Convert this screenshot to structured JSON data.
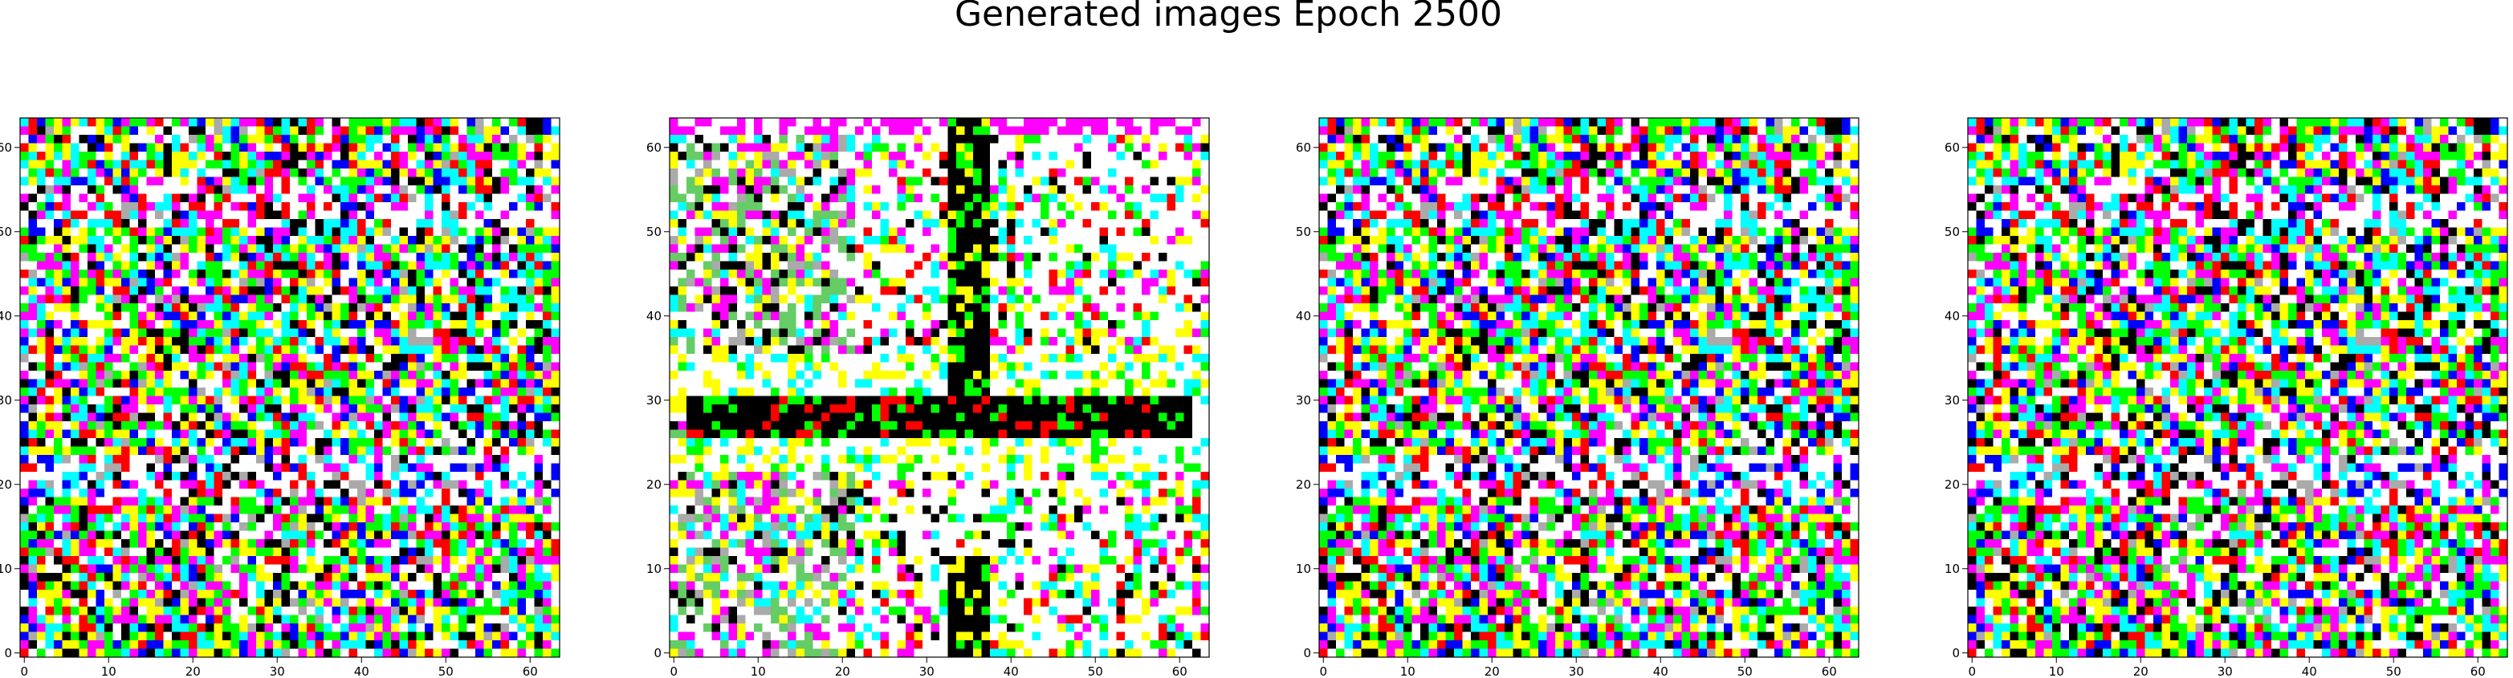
{
  "figure": {
    "title": "Generated images Epoch 2500"
  },
  "chart_data": [
    {
      "type": "heatmap",
      "panel": 1,
      "image_resolution": [
        64,
        64
      ],
      "pattern": "noise",
      "xticks": [
        0,
        10,
        20,
        30,
        40,
        50,
        60
      ],
      "yticks": [
        0,
        10,
        20,
        30,
        40,
        50,
        60
      ],
      "xlim": [
        -0.5,
        63.5
      ],
      "ylim": [
        63.5,
        -0.5
      ]
    },
    {
      "type": "heatmap",
      "panel": 2,
      "image_resolution": [
        64,
        64
      ],
      "pattern": "cross",
      "xticks": [
        0,
        10,
        20,
        30,
        40,
        50,
        60
      ],
      "yticks": [
        0,
        10,
        20,
        30,
        40,
        50,
        60
      ],
      "xlim": [
        -0.5,
        63.5
      ],
      "ylim": [
        63.5,
        -0.5
      ]
    },
    {
      "type": "heatmap",
      "panel": 3,
      "image_resolution": [
        64,
        64
      ],
      "pattern": "noise",
      "xticks": [
        0,
        10,
        20,
        30,
        40,
        50,
        60
      ],
      "yticks": [
        0,
        10,
        20,
        30,
        40,
        50,
        60
      ],
      "xlim": [
        -0.5,
        63.5
      ],
      "ylim": [
        63.5,
        -0.5
      ]
    },
    {
      "type": "heatmap",
      "panel": 4,
      "image_resolution": [
        64,
        64
      ],
      "pattern": "noise",
      "xticks": [
        0,
        10,
        20,
        30,
        40,
        50,
        60
      ],
      "yticks": [
        0,
        10,
        20,
        30,
        40,
        50,
        60
      ],
      "xlim": [
        -0.5,
        63.5
      ],
      "ylim": [
        63.5,
        -0.5
      ]
    }
  ],
  "palette": [
    "#ffffff",
    "#ffffff",
    "#ffff00",
    "#00ff00",
    "#00ffff",
    "#ff00ff",
    "#ff0000",
    "#0000ff",
    "#000000",
    "#aaaaaa",
    "#66cc66"
  ]
}
